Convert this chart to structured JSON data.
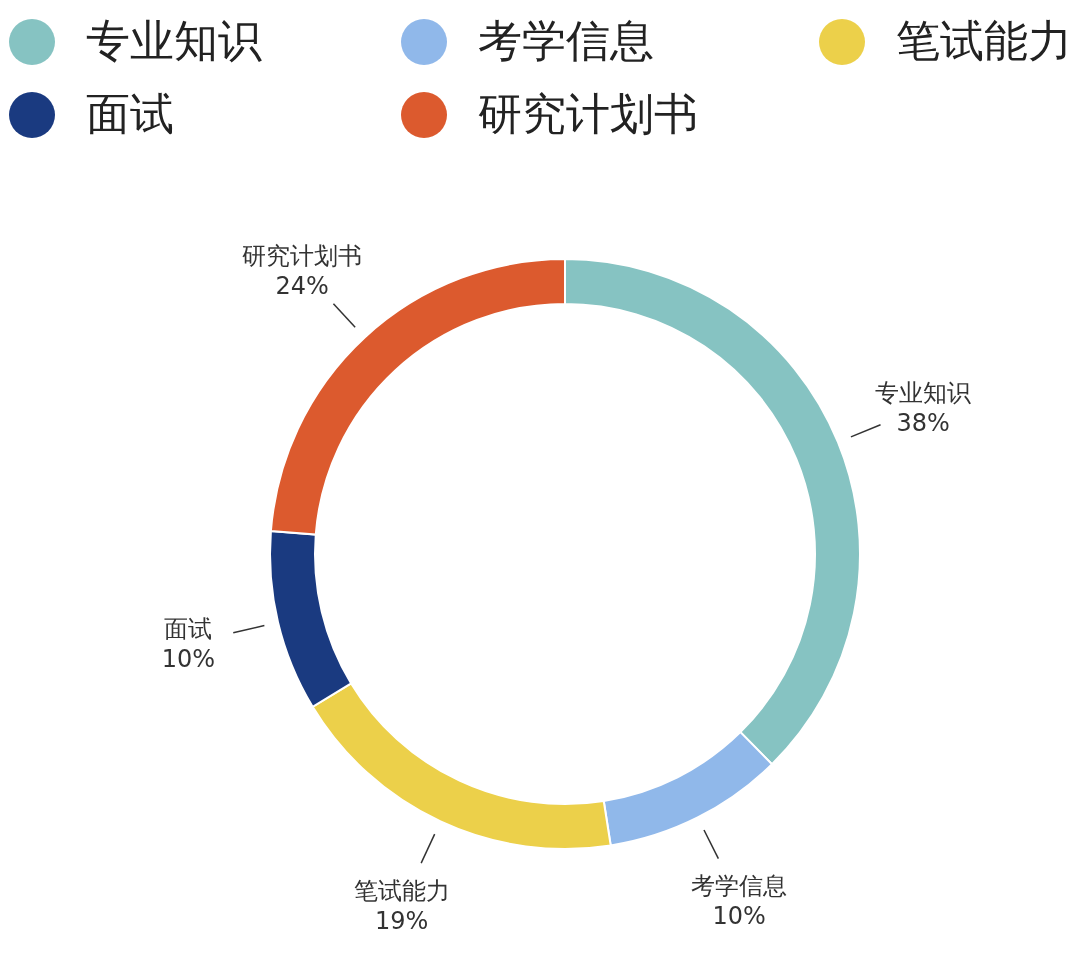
{
  "chart_data": {
    "type": "donut",
    "categories": [
      "专业知识",
      "考学信息",
      "笔试能力",
      "面试",
      "研究计划书"
    ],
    "values": [
      38,
      10,
      19,
      10,
      24
    ],
    "value_labels": [
      "38%",
      "10%",
      "19%",
      "10%",
      "24%"
    ],
    "colors": [
      "#86c3c2",
      "#90b8ea",
      "#ecd04a",
      "#1a3a80",
      "#dc5a2e"
    ],
    "legend": "top"
  }
}
